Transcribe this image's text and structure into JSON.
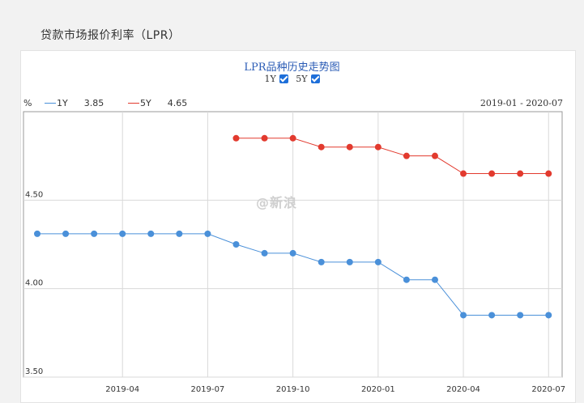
{
  "page": {
    "title": "贷款市场报价利率（LPR）"
  },
  "toggles": [
    {
      "label": "1Y",
      "checked": true
    },
    {
      "label": "5Y",
      "checked": true
    }
  ],
  "legend": {
    "unit": "%",
    "items": [
      {
        "name": "1Y",
        "value": "3.85",
        "color": "#4a90d9"
      },
      {
        "name": "5Y",
        "value": "4.65",
        "color": "#e23a2e"
      }
    ],
    "date_range": "2019-01 - 2020-07"
  },
  "watermark": "@新浪",
  "chart_data": {
    "type": "line",
    "title": "LPR品种历史走势图",
    "x": [
      "2019-01",
      "2019-02",
      "2019-03",
      "2019-04",
      "2019-05",
      "2019-06",
      "2019-07",
      "2019-08",
      "2019-09",
      "2019-10",
      "2019-11",
      "2019-12",
      "2020-01",
      "2020-02",
      "2020-03",
      "2020-04",
      "2020-05",
      "2020-06",
      "2020-07"
    ],
    "series": [
      {
        "name": "1Y",
        "color": "#4a90d9",
        "values": [
          4.31,
          4.31,
          4.31,
          4.31,
          4.31,
          4.31,
          4.31,
          4.25,
          4.2,
          4.2,
          4.15,
          4.15,
          4.15,
          4.05,
          4.05,
          3.85,
          3.85,
          3.85,
          3.85
        ]
      },
      {
        "name": "5Y",
        "color": "#e23a2e",
        "values": [
          null,
          null,
          null,
          null,
          null,
          null,
          null,
          4.85,
          4.85,
          4.85,
          4.8,
          4.8,
          4.8,
          4.75,
          4.75,
          4.65,
          4.65,
          4.65,
          4.65
        ]
      }
    ],
    "y_ticks": [
      "4.50",
      "4.00",
      "3.50"
    ],
    "y_tick_values": [
      4.5,
      4.0,
      3.5
    ],
    "x_tick_labels": [
      "2019-04",
      "2019-07",
      "2019-10",
      "2020-01",
      "2020-04",
      "2020-07"
    ],
    "x_tick_values": [
      "2019-04",
      "2019-07",
      "2019-10",
      "2020-01",
      "2020-04",
      "2020-07"
    ],
    "ylim": [
      3.5,
      5.0
    ],
    "grid": true
  }
}
